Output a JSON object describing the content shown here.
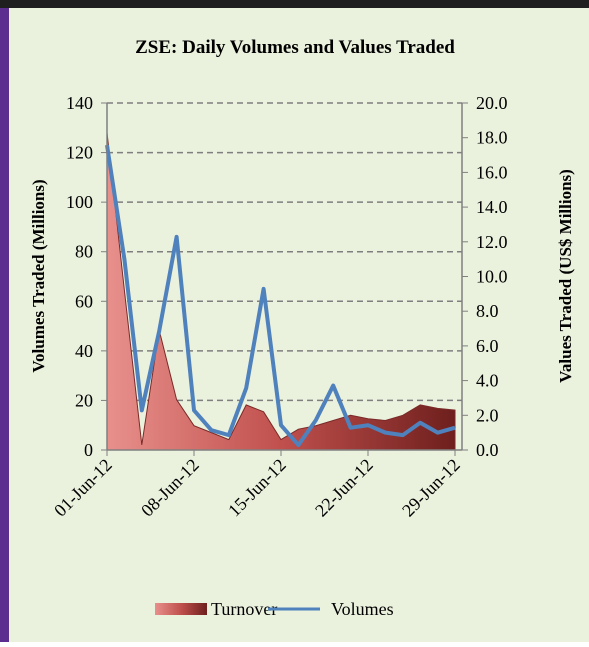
{
  "chart_data": {
    "type": "area-line",
    "title": "ZSE: Daily Volumes and Values Traded",
    "y_label": "Volumes Traded (Millions)",
    "y2_label": "Values Traded (US$ Millions)",
    "categories": [
      "01-Jun-12",
      null,
      null,
      null,
      null,
      "08-Jun-12",
      null,
      null,
      null,
      null,
      "15-Jun-12",
      null,
      null,
      null,
      null,
      "22-Jun-12",
      null,
      null,
      null,
      null,
      "29-Jun-12"
    ],
    "series": [
      {
        "name": "Turnover",
        "kind": "area",
        "axis": "y2",
        "color": "#c0504d",
        "values": [
          18.3,
          9.2,
          0.3,
          6.9,
          2.9,
          1.4,
          1.0,
          0.6,
          2.6,
          2.2,
          0.6,
          1.2,
          1.4,
          1.7,
          2.0,
          1.8,
          1.7,
          2.0,
          2.6,
          2.4,
          2.3
        ]
      },
      {
        "name": "Volumes",
        "kind": "line",
        "color": "#4f81bd",
        "values": [
          123,
          77,
          16,
          48,
          86,
          16,
          8,
          6,
          25,
          65,
          10,
          2,
          12,
          26,
          9,
          10,
          7,
          6,
          11,
          7,
          9
        ]
      }
    ],
    "ylim": [
      0,
      140
    ],
    "yticks": [
      0,
      20,
      40,
      60,
      80,
      100,
      120,
      140
    ],
    "y2lim": [
      0,
      20
    ],
    "y2ticks": [
      {
        "value": 0,
        "label": "0.0"
      },
      {
        "value": 2,
        "label": "2.0"
      },
      {
        "value": 4,
        "label": "4.0"
      },
      {
        "value": 6,
        "label": "6.0"
      },
      {
        "value": 8,
        "label": "8.0"
      },
      {
        "value": 10,
        "label": "10.0"
      },
      {
        "value": 12,
        "label": "12.0"
      },
      {
        "value": 14,
        "label": "14.0"
      },
      {
        "value": 16,
        "label": "16.0"
      },
      {
        "value": 18,
        "label": "18.0"
      },
      {
        "value": 20,
        "label": "20.0"
      }
    ],
    "grid": true
  }
}
